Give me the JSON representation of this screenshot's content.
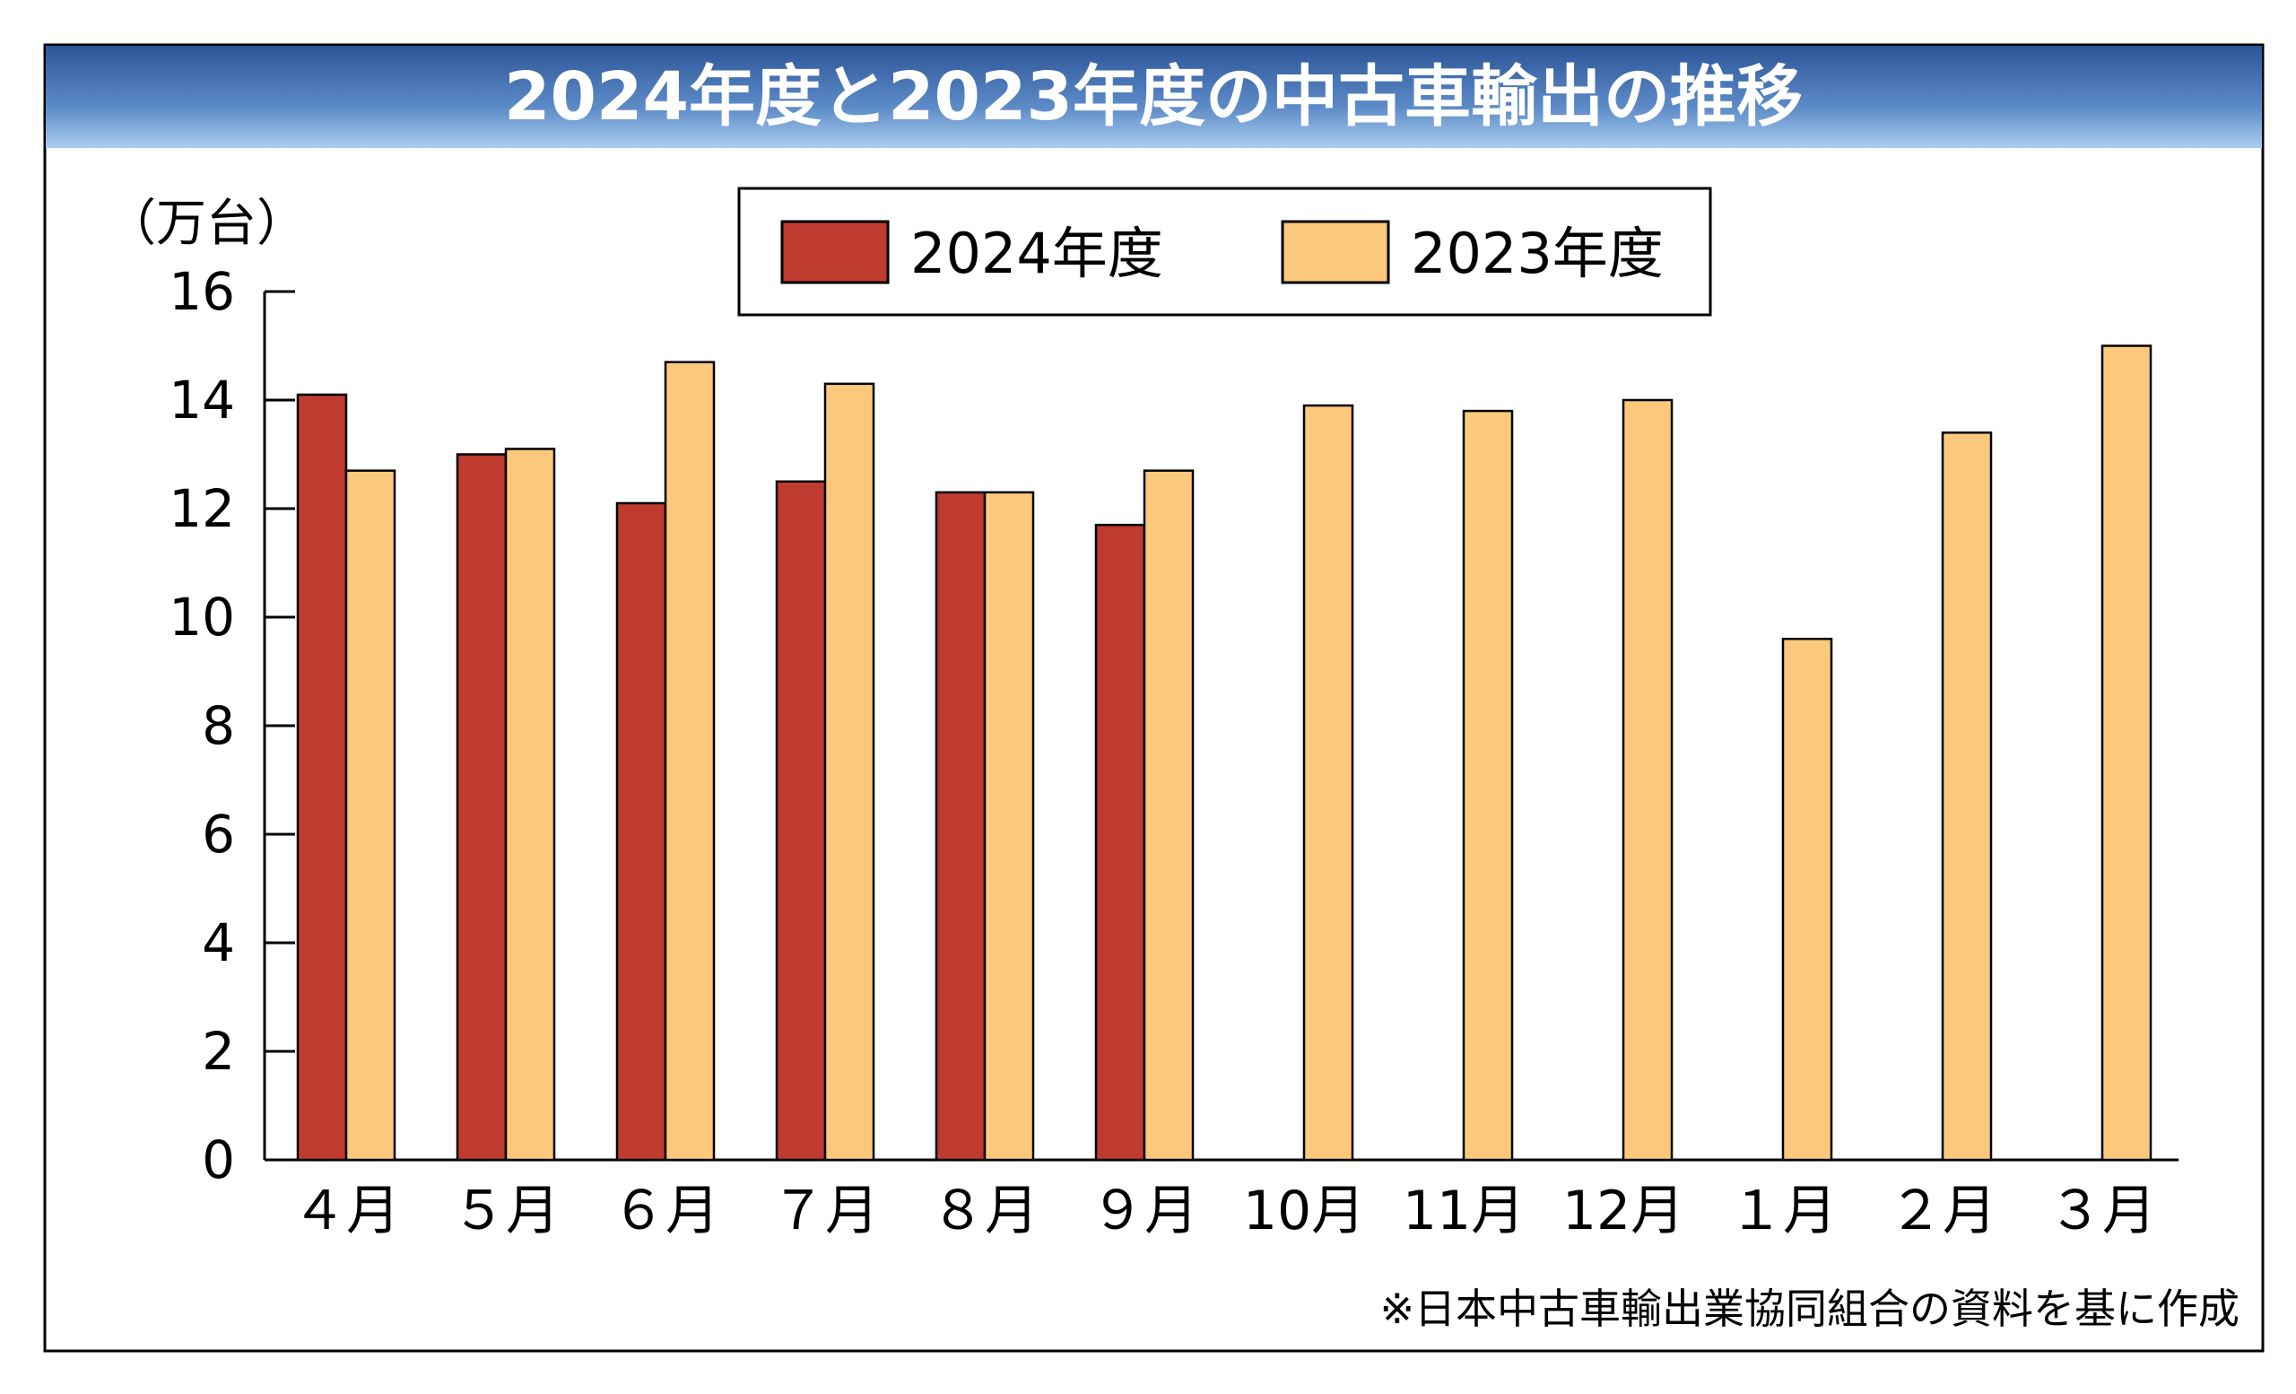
{
  "chart_data": {
    "type": "bar",
    "title": "2024年度と2023年度の中古車輸出の推移",
    "ylabel": "（万台）",
    "xlabel": "",
    "ylim": [
      0,
      16
    ],
    "yticks": [
      "0",
      "2",
      "4",
      "6",
      "8",
      "10",
      "12",
      "14",
      "16"
    ],
    "categories": [
      "４月",
      "５月",
      "６月",
      "７月",
      "８月",
      "９月",
      "10月",
      "11月",
      "12月",
      "１月",
      "２月",
      "３月"
    ],
    "series": [
      {
        "name": "2024年度",
        "color": "#bf3a2f",
        "values": [
          14.1,
          13.0,
          12.1,
          12.5,
          12.3,
          11.7,
          null,
          null,
          null,
          null,
          null,
          null
        ]
      },
      {
        "name": "2023年度",
        "color": "#fcc97c",
        "values": [
          12.7,
          13.1,
          14.7,
          14.3,
          12.3,
          12.7,
          13.9,
          13.8,
          14.0,
          9.6,
          13.4,
          15.0
        ]
      }
    ],
    "legend_position": "top-center",
    "grid": false,
    "note": "※日本中古車輸出業協同組合の資料を基に作成"
  }
}
